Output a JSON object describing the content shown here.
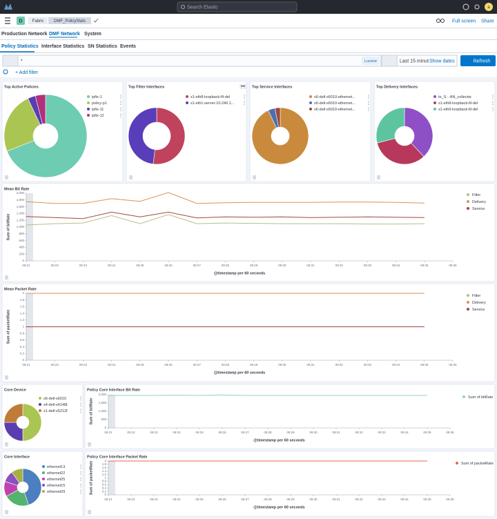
{
  "header": {
    "search": "Search Elastic",
    "avatar": "a",
    "space": "D",
    "breadcrumbs": [
      "Fabric",
      "DMF_PolicyStats"
    ],
    "actions": [
      "Full screen",
      "Share"
    ]
  },
  "nav": {
    "items": [
      "Production Network",
      "DMF Network",
      "System"
    ]
  },
  "tabs": {
    "items": [
      "Policy Statistics",
      "Interface Statistics",
      "SN Statistics",
      "Events"
    ]
  },
  "query": {
    "text": "*",
    "language": "Lucene",
    "time": "Last 15 minut",
    "show_dates": "Show dates",
    "refresh": "Refresh",
    "add_filter": "+ Add filter"
  },
  "chart_data": [
    {
      "type": "pie",
      "title": "Top Active Policies",
      "categories": [
        "ipfix-1",
        "policy-p1",
        "ipfix-11",
        "ipfix-12"
      ],
      "values": [
        69,
        24,
        3,
        4
      ],
      "colors": [
        "#6dccb1",
        "#aac552",
        "#5a3db0",
        "#b0307e"
      ]
    },
    {
      "type": "pie",
      "title": "Top Filter Interfaces",
      "categories": [
        "s1-eth8-loopback-fil-del",
        "s1-eth1-server-10.240.1..."
      ],
      "values": [
        52,
        48
      ],
      "colors": [
        "#c0435d",
        "#5a3db8"
      ]
    },
    {
      "type": "pie",
      "title": "Top Service Interfaces",
      "categories": [
        "s6-dell-s6010-ethernet...",
        "s6-dell-s6010-ethernet...",
        "s6-dell-s6010-ethernet..."
      ],
      "values": [
        93,
        4,
        3
      ],
      "colors": [
        "#c98a3e",
        "#4c6fb0",
        "#9b4a3e"
      ]
    },
    {
      "type": "pie",
      "title": "Top Delivery Interfaces",
      "categories": [
        "to_S···AN_collector",
        "s1-eth8-loopback-fil-del",
        "s1-eth9-loopback-fil-del"
      ],
      "values": [
        38,
        33,
        29
      ],
      "colors": [
        "#8e4fc7",
        "#b7385b",
        "#5cc5a0"
      ]
    },
    {
      "type": "line",
      "title": "Mean Bit Rate",
      "y_label": "Sum of bitRate",
      "x_label": "@timestamp per 60 seconds",
      "categories": [
        "09:21",
        "09:22",
        "09:23",
        "09:24",
        "09:25",
        "09:26",
        "09:27",
        "09:28",
        "09:29",
        "09:30",
        "09:31",
        "09:32",
        "09:33",
        "09:34",
        "09:35",
        "09:36"
      ],
      "ylim": [
        0,
        2000
      ],
      "yticks": [
        0,
        200,
        400,
        600,
        800,
        {
          "value": 1000,
          "label": "1,000"
        },
        {
          "value": 1200,
          "label": "1,200"
        },
        {
          "value": 1400,
          "label": "1,400"
        },
        {
          "value": 1600,
          "label": "1,600"
        },
        {
          "value": 1800,
          "label": "1,800"
        },
        {
          "value": 2000,
          "label": "2,000"
        }
      ],
      "series": [
        {
          "name": "Filter",
          "color": "#b5bf87",
          "values": [
            1060,
            1100,
            1120,
            1340,
            1100,
            1370,
            1100,
            1120,
            1110,
            1100,
            1100,
            1100,
            1090,
            1090,
            1100,
            null
          ]
        },
        {
          "name": "Delivery",
          "color": "#d9925a",
          "values": [
            1750,
            1700,
            1700,
            1840,
            1760,
            2020,
            1700,
            1720,
            1730,
            1730,
            1730,
            1740,
            1740,
            1730,
            1710,
            null
          ]
        },
        {
          "name": "Service",
          "color": "#9b4a3e",
          "values": [
            1310,
            1280,
            1250,
            1440,
            1300,
            1440,
            1270,
            1300,
            1290,
            1300,
            1280,
            1290,
            1300,
            1290,
            1280,
            null
          ]
        }
      ]
    },
    {
      "type": "line",
      "title": "Mean Packet Rate",
      "y_label": "Sum of packetRate",
      "x_label": "@timestamp per 60 seconds",
      "categories": [
        "09:21",
        "09:22",
        "09:23",
        "09:24",
        "09:25",
        "09:26",
        "09:27",
        "09:28",
        "09:29",
        "09:30",
        "09:31",
        "09:32",
        "09:33",
        "09:34",
        "09:35",
        "09:36"
      ],
      "ylim": [
        0,
        2
      ],
      "yticks": [
        0,
        0.2,
        0.4,
        0.6,
        0.8,
        1,
        1.2,
        1.4,
        1.6,
        1.8,
        2
      ],
      "series": [
        {
          "name": "Filter",
          "color": "#b5bf87",
          "values": [
            1,
            1,
            1,
            1,
            1,
            1,
            1,
            1,
            1,
            1,
            1,
            1,
            1,
            1,
            1,
            null
          ]
        },
        {
          "name": "Delivery",
          "color": "#d9925a",
          "values": [
            2,
            2,
            2,
            2,
            2,
            2,
            2,
            2,
            2,
            2,
            2,
            2,
            2,
            2,
            2,
            null
          ]
        },
        {
          "name": "Service",
          "color": "#9b4a3e",
          "values": [
            1,
            1,
            1,
            1,
            1,
            1,
            1,
            1,
            1,
            1,
            1,
            1,
            1,
            1,
            1,
            null
          ]
        }
      ]
    },
    {
      "type": "pie",
      "title": "Core Device",
      "categories": [
        "s6-dell-s6010",
        "s4-dell-s4148t",
        "s1-dell-s5212f"
      ],
      "values": [
        50,
        25,
        25
      ],
      "colors": [
        "#aac552",
        "#5a3db0",
        "#c07a3a"
      ]
    },
    {
      "type": "line",
      "title": "Policy Core Interface Bit Rate",
      "y_label": "Sum of bitRate",
      "x_label": "@timestamp per 60 seconds",
      "categories": [
        "09:21",
        "09:22",
        "09:23",
        "09:24",
        "09:25",
        "09:26",
        "09:27",
        "09:28",
        "09:29",
        "09:30",
        "09:31",
        "09:32",
        "09:33",
        "09:34",
        "09:35",
        "09:36"
      ],
      "ylim": [
        0,
        2000
      ],
      "yticks": [
        0,
        500,
        {
          "value": 1000,
          "label": "1,000"
        },
        {
          "value": 1500,
          "label": "1,500"
        },
        {
          "value": 2000,
          "label": "2,000"
        }
      ],
      "series": [
        {
          "name": "Sum of bitRate",
          "color": "#8fd3c0",
          "values": [
            1960,
            1960,
            1960,
            1980,
            1960,
            1990,
            1960,
            1960,
            1960,
            1960,
            1960,
            1960,
            1960,
            1960,
            1960,
            null
          ]
        }
      ]
    },
    {
      "type": "pie",
      "title": "Core Interface",
      "categories": [
        "ethernet13",
        "ethernet22",
        "ethernet25",
        "ethernet15",
        "ethernet29"
      ],
      "values": [
        45,
        22,
        13,
        10,
        10
      ],
      "colors": [
        "#4c7fc0",
        "#54b36c",
        "#c040b0",
        "#8a50c0",
        "#a8b040"
      ]
    },
    {
      "type": "line",
      "title": "Policy Core Interface Packet Rate",
      "y_label": "Sum of packetRate",
      "x_label": "@timestamp per 60 seconds",
      "categories": [
        "09:21",
        "09:22",
        "09:23",
        "09:24",
        "09:25",
        "09:26",
        "09:27",
        "09:28",
        "09:29",
        "09:30",
        "09:31",
        "09:32",
        "09:33",
        "09:34",
        "09:35",
        "09:36"
      ],
      "ylim": [
        0,
        2
      ],
      "yticks": [
        0,
        0.2,
        0.4,
        0.6,
        0.8,
        1,
        1.2,
        1.4,
        1.6,
        1.8,
        2
      ],
      "series": [
        {
          "name": "Sum of packetRate",
          "color": "#e7664c",
          "values": [
            2,
            2,
            2,
            2,
            2,
            2,
            2,
            2,
            2,
            2,
            2,
            2,
            2,
            2,
            2,
            null
          ]
        }
      ]
    }
  ]
}
